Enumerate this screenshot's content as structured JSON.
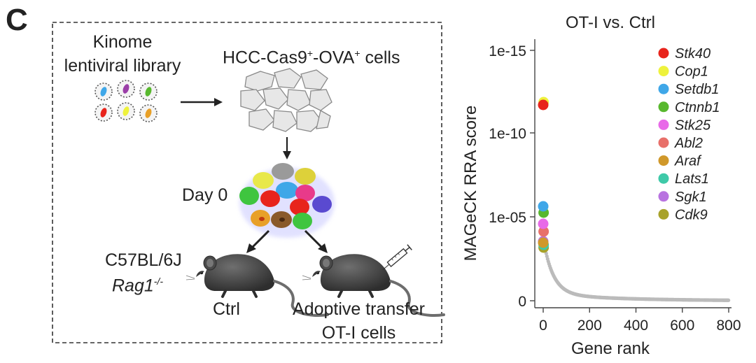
{
  "panel_label": "C",
  "schematic": {
    "library_line1": "Kinome",
    "library_line2": "lentiviral library",
    "cells_label_prefix": "HCC-Cas9",
    "cells_sup1": "+",
    "cells_label_mid": "-OVA",
    "cells_sup2": "+",
    "cells_label_suffix": " cells",
    "day_label": "Day 0",
    "mouse_strain": "C57BL/6J",
    "rag_label": "Rag1",
    "rag_sup": "-/-",
    "ctrl_label": "Ctrl",
    "transfer_line1": "Adoptive transfer",
    "transfer_line2": "OT-I cells"
  },
  "colors": {
    "red": "#e8241c",
    "yellow": "#eef23c",
    "blue": "#3fa7e8",
    "green": "#58b82e",
    "magenta": "#e86ae8",
    "salmon": "#e8706a",
    "orange": "#d0982a",
    "teal": "#3ec9a8",
    "purple": "#b873e0",
    "olive": "#a8a22a",
    "gray": "#bbbbbb"
  },
  "chart_data": {
    "type": "scatter",
    "title": "OT-I vs. Ctrl",
    "xlabel": "Gene rank",
    "ylabel": "MAGeCK RRA score",
    "xlim": [
      0,
      800
    ],
    "x_ticks": [
      "0",
      "200",
      "400",
      "600",
      "800"
    ],
    "y_ticks": [
      "1e-15",
      "1e-10",
      "1e-05",
      "0"
    ],
    "legend_position": "top-right",
    "highlighted_genes": [
      {
        "name": "Stk40",
        "rank": 1,
        "color": "#e8241c"
      },
      {
        "name": "Cop1",
        "rank": 2,
        "color": "#eef23c"
      },
      {
        "name": "Setdb1",
        "rank": 3,
        "color": "#3fa7e8"
      },
      {
        "name": "Ctnnb1",
        "rank": 4,
        "color": "#58b82e"
      },
      {
        "name": "Stk25",
        "rank": 5,
        "color": "#e86ae8"
      },
      {
        "name": "Abl2",
        "rank": 6,
        "color": "#e8706a"
      },
      {
        "name": "Araf",
        "rank": 7,
        "color": "#d0982a"
      },
      {
        "name": "Lats1",
        "rank": 8,
        "color": "#3ec9a8"
      },
      {
        "name": "Sgk1",
        "rank": 9,
        "color": "#b873e0"
      },
      {
        "name": "Cdk9",
        "rank": 10,
        "color": "#a8a22a"
      }
    ],
    "background_series_color": "#bbbbbb"
  }
}
